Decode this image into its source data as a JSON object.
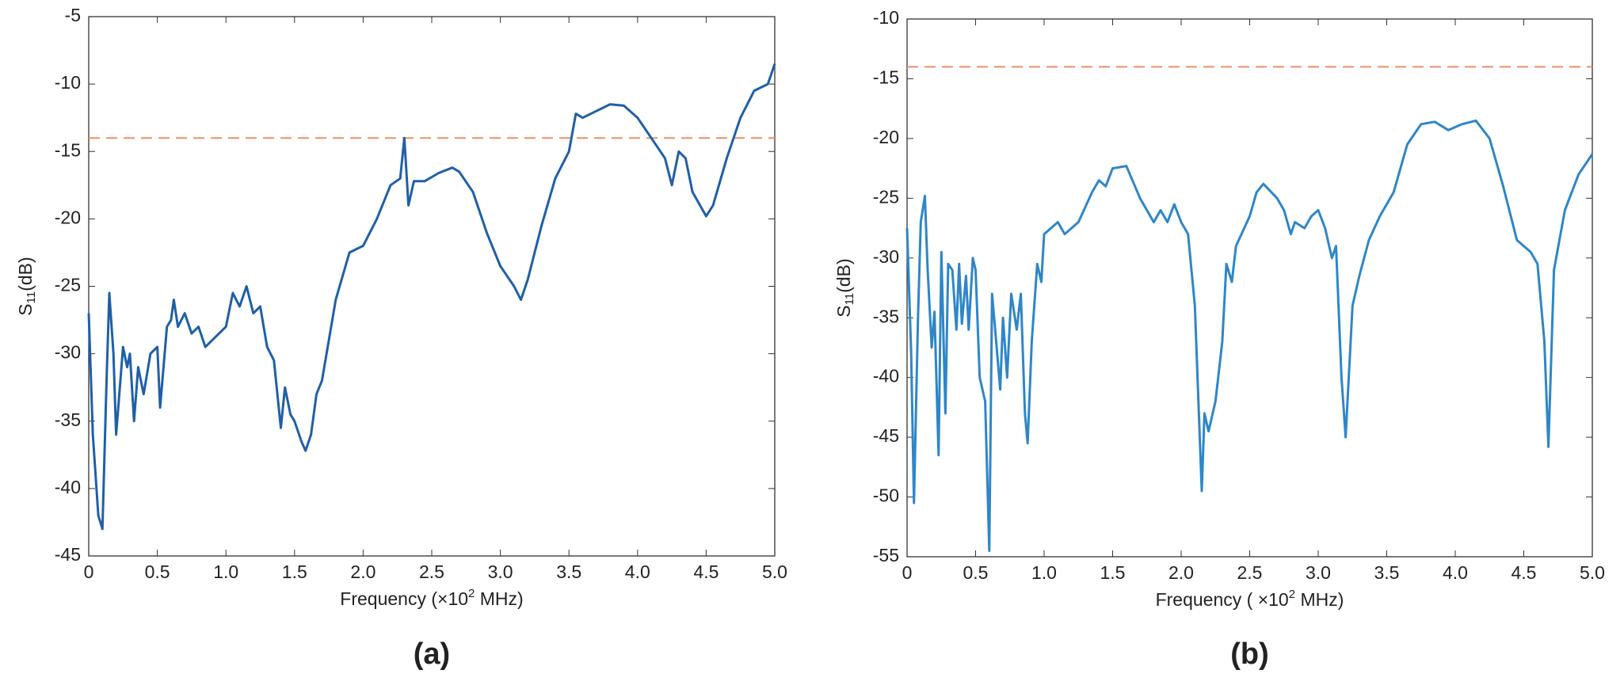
{
  "chart_data": [
    {
      "type": "line",
      "panel_label": "(a)",
      "xlabel": {
        "main": "Frequency (×10",
        "sup": "2",
        "unit": " MHz)"
      },
      "ylabel": {
        "main": "S",
        "sub": "11",
        "unit": "(dB)"
      },
      "xlim": [
        0,
        5
      ],
      "ylim": [
        -45,
        -5
      ],
      "xticks": [
        0,
        0.5,
        {
          "value": 1,
          "label": "1.0"
        },
        1.5,
        {
          "value": 2,
          "label": "2.0"
        },
        2.5,
        {
          "value": 3,
          "label": "3.0"
        },
        3.5,
        {
          "value": 4,
          "label": "4.0"
        },
        4.5,
        {
          "value": 5,
          "label": "5.0"
        }
      ],
      "yticks": [
        -45,
        -40,
        -35,
        -30,
        -25,
        -20,
        -15,
        -10,
        -5
      ],
      "threshold": {
        "value": -14,
        "color": "#ef8f63"
      },
      "x": [
        0,
        0.03,
        0.07,
        0.1,
        0.13,
        0.15,
        0.18,
        0.2,
        0.25,
        0.28,
        0.3,
        0.33,
        0.36,
        0.4,
        0.45,
        0.5,
        0.52,
        0.57,
        0.6,
        0.62,
        0.65,
        0.7,
        0.75,
        0.8,
        0.85,
        0.9,
        0.95,
        1.0,
        1.05,
        1.1,
        1.15,
        1.2,
        1.25,
        1.3,
        1.35,
        1.4,
        1.43,
        1.47,
        1.5,
        1.55,
        1.58,
        1.62,
        1.66,
        1.7,
        1.8,
        1.9,
        2.0,
        2.1,
        2.2,
        2.27,
        2.3,
        2.33,
        2.37,
        2.45,
        2.55,
        2.65,
        2.7,
        2.8,
        2.9,
        3.0,
        3.1,
        3.15,
        3.2,
        3.3,
        3.4,
        3.5,
        3.55,
        3.6,
        3.7,
        3.8,
        3.9,
        4.0,
        4.1,
        4.2,
        4.25,
        4.3,
        4.35,
        4.4,
        4.5,
        4.55,
        4.65,
        4.75,
        4.85,
        4.95,
        5.0
      ],
      "series": [
        {
          "color": "#1f5fa8",
          "values": [
            -27,
            -36,
            -42,
            -43,
            -32,
            -25.5,
            -30,
            -36,
            -29.5,
            -31,
            -30,
            -35,
            -31,
            -33,
            -30,
            -29.5,
            -34,
            -28,
            -27.5,
            -26,
            -28,
            -27,
            -28.5,
            -28,
            -29.5,
            -29,
            -28.5,
            -28,
            -25.5,
            -26.5,
            -25,
            -27,
            -26.5,
            -29.5,
            -30.5,
            -35.5,
            -32.5,
            -34.5,
            -35,
            -36.5,
            -37.2,
            -36,
            -33,
            -32,
            -26,
            -22.5,
            -22,
            -20,
            -17.5,
            -17,
            -14,
            -19,
            -17.2,
            -17.2,
            -16.6,
            -16.2,
            -16.5,
            -18,
            -21,
            -23.5,
            -25,
            -26,
            -24.5,
            -20.5,
            -17,
            -15,
            -12.2,
            -12.5,
            -12,
            -11.5,
            -11.6,
            -12.5,
            -14,
            -15.5,
            -17.5,
            -15,
            -15.5,
            -18,
            -19.8,
            -19,
            -15.5,
            -12.5,
            -10.5,
            -10,
            -8.5
          ]
        }
      ]
    },
    {
      "type": "line",
      "panel_label": "(b)",
      "xlabel": {
        "main": "Frequency ( ×10",
        "sup": "2",
        "unit": " MHz)"
      },
      "ylabel": {
        "main": "S",
        "sub": "11",
        "unit": "(dB)"
      },
      "xlim": [
        0,
        5
      ],
      "ylim": [
        -55,
        -10
      ],
      "xticks": [
        0,
        0.5,
        {
          "value": 1,
          "label": "1.0"
        },
        1.5,
        {
          "value": 2,
          "label": "2.0"
        },
        2.5,
        {
          "value": 3,
          "label": "3.0"
        },
        3.5,
        {
          "value": 4,
          "label": "4.0"
        },
        4.5,
        {
          "value": 5,
          "label": "5.0"
        }
      ],
      "yticks": [
        -55,
        -50,
        -45,
        -40,
        -35,
        -30,
        -25,
        -20,
        -15,
        -10
      ],
      "threshold": {
        "value": -14,
        "color": "#ef8f63"
      },
      "x": [
        0,
        0.03,
        0.05,
        0.08,
        0.1,
        0.13,
        0.15,
        0.18,
        0.2,
        0.23,
        0.25,
        0.28,
        0.3,
        0.33,
        0.36,
        0.38,
        0.4,
        0.43,
        0.45,
        0.48,
        0.5,
        0.53,
        0.57,
        0.6,
        0.62,
        0.65,
        0.68,
        0.7,
        0.73,
        0.76,
        0.8,
        0.83,
        0.86,
        0.88,
        0.91,
        0.95,
        0.98,
        1.0,
        1.05,
        1.1,
        1.15,
        1.25,
        1.35,
        1.4,
        1.45,
        1.5,
        1.6,
        1.7,
        1.8,
        1.85,
        1.9,
        1.95,
        2.0,
        2.05,
        2.1,
        2.15,
        2.17,
        2.2,
        2.25,
        2.3,
        2.33,
        2.37,
        2.4,
        2.5,
        2.55,
        2.6,
        2.7,
        2.75,
        2.8,
        2.83,
        2.9,
        2.95,
        3.0,
        3.05,
        3.1,
        3.13,
        3.17,
        3.2,
        3.25,
        3.3,
        3.37,
        3.45,
        3.55,
        3.65,
        3.75,
        3.85,
        3.95,
        4.05,
        4.15,
        4.25,
        4.35,
        4.45,
        4.55,
        4.6,
        4.65,
        4.68,
        4.72,
        4.8,
        4.9,
        5.0
      ],
      "series": [
        {
          "color": "#2e86c8",
          "values": [
            -27.5,
            -38,
            -50.5,
            -35,
            -27,
            -24.8,
            -31,
            -37.5,
            -34.5,
            -46.5,
            -29.5,
            -43,
            -30.5,
            -31,
            -36,
            -30.5,
            -35.5,
            -31.5,
            -36,
            -30,
            -31,
            -40,
            -42,
            -54.5,
            -33,
            -37,
            -41,
            -35,
            -40,
            -33,
            -36,
            -33,
            -43,
            -45.5,
            -37,
            -30.5,
            -32,
            -28,
            -27.5,
            -27,
            -28,
            -27,
            -24.5,
            -23.5,
            -24,
            -22.5,
            -22.3,
            -25,
            -27,
            -26,
            -27,
            -25.5,
            -27,
            -28,
            -34,
            -49.5,
            -43,
            -44.5,
            -42,
            -37,
            -30.5,
            -32,
            -29,
            -26.5,
            -24.5,
            -23.8,
            -25,
            -26,
            -28,
            -27,
            -27.5,
            -26.5,
            -26,
            -27.5,
            -30,
            -29,
            -40,
            -45,
            -34,
            -31.5,
            -28.5,
            -26.5,
            -24.5,
            -20.5,
            -18.8,
            -18.6,
            -19.3,
            -18.8,
            -18.5,
            -20,
            -24,
            -28.5,
            -29.5,
            -30.5,
            -37,
            -45.8,
            -31,
            -26,
            -23,
            -21.3
          ]
        }
      ]
    }
  ]
}
